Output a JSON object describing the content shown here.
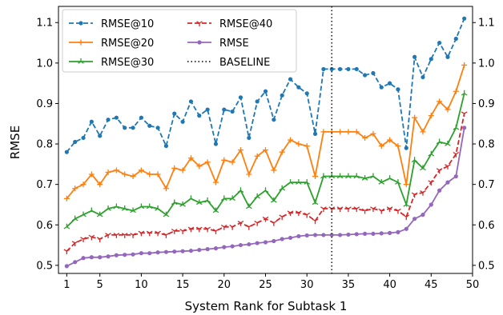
{
  "chart_data": {
    "type": "line",
    "xlabel": "System Rank for Subtask 1",
    "ylabel": "RMSE",
    "xlim": [
      0,
      50
    ],
    "ylim": [
      0.48,
      1.14
    ],
    "xticks": [
      1,
      5,
      10,
      15,
      20,
      25,
      30,
      35,
      40,
      45,
      50
    ],
    "yticks": [
      0.5,
      0.6,
      0.7,
      0.8,
      0.9,
      1.0,
      1.1
    ],
    "ytick_labels": [
      "0.5",
      "0.6",
      "0.7",
      "0.8",
      "0.9",
      "1.0",
      "1.1"
    ],
    "right_axis_mirrored": true,
    "grid": false,
    "legend_position": "top-left",
    "baseline_x": 33,
    "x": [
      1,
      2,
      3,
      4,
      5,
      6,
      7,
      8,
      9,
      10,
      11,
      12,
      13,
      14,
      15,
      16,
      17,
      18,
      19,
      20,
      21,
      22,
      23,
      24,
      25,
      26,
      27,
      28,
      29,
      30,
      31,
      32,
      33,
      34,
      35,
      36,
      37,
      38,
      39,
      40,
      41,
      42,
      43,
      44,
      45,
      46,
      47,
      48,
      49
    ],
    "series": [
      {
        "name": "RMSE@10",
        "color": "#1f77b4",
        "style": "dashed",
        "marker": "circle",
        "values": [
          0.78,
          0.805,
          0.815,
          0.855,
          0.82,
          0.86,
          0.865,
          0.84,
          0.84,
          0.865,
          0.845,
          0.84,
          0.795,
          0.875,
          0.855,
          0.905,
          0.87,
          0.885,
          0.8,
          0.885,
          0.88,
          0.915,
          0.815,
          0.905,
          0.93,
          0.86,
          0.92,
          0.96,
          0.94,
          0.925,
          0.825,
          0.985,
          0.985,
          0.985,
          0.985,
          0.985,
          0.97,
          0.975,
          0.94,
          0.95,
          0.935,
          0.79,
          1.015,
          0.965,
          1.01,
          1.05,
          1.015,
          1.06,
          1.11
        ]
      },
      {
        "name": "RMSE@20",
        "color": "#ff7f0e",
        "style": "solid",
        "marker": "plus",
        "values": [
          0.665,
          0.69,
          0.7,
          0.725,
          0.7,
          0.73,
          0.735,
          0.725,
          0.72,
          0.735,
          0.725,
          0.725,
          0.69,
          0.74,
          0.735,
          0.765,
          0.745,
          0.755,
          0.705,
          0.76,
          0.755,
          0.785,
          0.725,
          0.77,
          0.785,
          0.735,
          0.78,
          0.81,
          0.8,
          0.795,
          0.72,
          0.83,
          0.83,
          0.83,
          0.83,
          0.83,
          0.815,
          0.825,
          0.795,
          0.81,
          0.795,
          0.7,
          0.865,
          0.83,
          0.87,
          0.905,
          0.885,
          0.93,
          0.995
        ]
      },
      {
        "name": "RMSE@30",
        "color": "#2ca02c",
        "style": "solid",
        "marker": "tri",
        "values": [
          0.595,
          0.615,
          0.625,
          0.635,
          0.625,
          0.64,
          0.645,
          0.64,
          0.635,
          0.645,
          0.645,
          0.64,
          0.625,
          0.655,
          0.65,
          0.665,
          0.655,
          0.66,
          0.635,
          0.665,
          0.665,
          0.685,
          0.645,
          0.67,
          0.685,
          0.66,
          0.69,
          0.705,
          0.705,
          0.705,
          0.655,
          0.72,
          0.72,
          0.72,
          0.72,
          0.72,
          0.715,
          0.72,
          0.705,
          0.715,
          0.705,
          0.65,
          0.76,
          0.74,
          0.775,
          0.805,
          0.8,
          0.84,
          0.925
        ]
      },
      {
        "name": "RMSE@40",
        "color": "#d62728",
        "style": "dashed",
        "marker": "tri_down",
        "values": [
          0.535,
          0.555,
          0.565,
          0.57,
          0.565,
          0.575,
          0.575,
          0.575,
          0.575,
          0.58,
          0.58,
          0.58,
          0.575,
          0.585,
          0.585,
          0.59,
          0.59,
          0.59,
          0.585,
          0.595,
          0.595,
          0.605,
          0.595,
          0.605,
          0.615,
          0.605,
          0.62,
          0.63,
          0.63,
          0.625,
          0.61,
          0.64,
          0.64,
          0.64,
          0.64,
          0.64,
          0.635,
          0.64,
          0.635,
          0.64,
          0.635,
          0.62,
          0.675,
          0.68,
          0.705,
          0.735,
          0.745,
          0.775,
          0.875
        ]
      },
      {
        "name": "RMSE",
        "color": "#9467bd",
        "style": "solid",
        "marker": "circle",
        "values": [
          0.498,
          0.508,
          0.518,
          0.52,
          0.52,
          0.522,
          0.525,
          0.526,
          0.527,
          0.53,
          0.53,
          0.532,
          0.533,
          0.534,
          0.535,
          0.536,
          0.538,
          0.54,
          0.542,
          0.545,
          0.547,
          0.55,
          0.552,
          0.555,
          0.557,
          0.56,
          0.565,
          0.568,
          0.572,
          0.574,
          0.575,
          0.575,
          0.575,
          0.575,
          0.576,
          0.577,
          0.578,
          0.578,
          0.579,
          0.58,
          0.582,
          0.59,
          0.615,
          0.625,
          0.65,
          0.685,
          0.705,
          0.72,
          0.84
        ]
      }
    ],
    "legend": [
      {
        "name": "RMSE@10",
        "color": "#1f77b4",
        "style": "dashed",
        "marker": "circle"
      },
      {
        "name": "RMSE@20",
        "color": "#ff7f0e",
        "style": "solid",
        "marker": "plus"
      },
      {
        "name": "RMSE@30",
        "color": "#2ca02c",
        "style": "solid",
        "marker": "tri"
      },
      {
        "name": "RMSE@40",
        "color": "#d62728",
        "style": "dashed",
        "marker": "tri_down"
      },
      {
        "name": "RMSE",
        "color": "#9467bd",
        "style": "solid",
        "marker": "circle"
      },
      {
        "name": "BASELINE",
        "color": "#222222",
        "style": "dotted",
        "marker": "none"
      }
    ]
  }
}
